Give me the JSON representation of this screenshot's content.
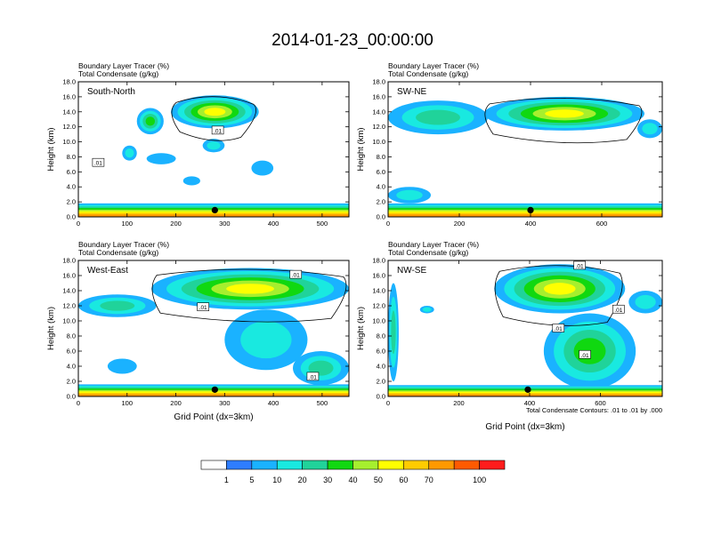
{
  "figure": {
    "title": "2014-01-23_00:00:00",
    "footnote": "Total Condensate Contours: .01 to .01 by .000"
  },
  "colorbar": {
    "labels": [
      "1",
      "5",
      "10",
      "20",
      "30",
      "40",
      "50",
      "60",
      "70",
      "100"
    ],
    "colors": [
      "#ffffff",
      "#2e7dff",
      "#1ab2ff",
      "#19e9e0",
      "#20d39a",
      "#10d810",
      "#a6ef2e",
      "#ffff00",
      "#ffcc00",
      "#ff9900",
      "#ff5a00",
      "#ff1c1c"
    ]
  },
  "chart_data": [
    {
      "type": "heatmap",
      "panel_label": "South-North",
      "header_line1": "Boundary Layer Tracer    (%)",
      "header_line2": "Total Condensate    (g/kg)",
      "ylabel": "Height (km)",
      "xlabel": "",
      "xlim": [
        0,
        555
      ],
      "ylim": [
        0,
        18
      ],
      "xticks": [
        0,
        100,
        200,
        300,
        400,
        500
      ],
      "xtick_labels": [
        "0",
        "100",
        "200",
        "300",
        "400",
        "500"
      ],
      "yticks": [
        0,
        2,
        4,
        6,
        8,
        10,
        12,
        14,
        16,
        18
      ],
      "ytick_labels": [
        "0.0",
        "2.0",
        "4.0",
        "6.0",
        "8.0",
        "10.0",
        "12.0",
        "14.0",
        "16.0",
        "18.0"
      ],
      "marker_x": 280,
      "contour_labels": [
        ".01",
        ".01"
      ],
      "contour_label_pos": [
        [
          40,
          7.2
        ],
        [
          285,
          11.5
        ]
      ],
      "tracer_regions": [
        {
          "x": [
            190,
            370
          ],
          "y": [
            11.8,
            16.2
          ],
          "level": 50
        },
        {
          "x": [
            120,
            175
          ],
          "y": [
            11.0,
            14.5
          ],
          "level": 30
        },
        {
          "x": [
            90,
            120
          ],
          "y": [
            7.5,
            9.5
          ],
          "level": 10
        },
        {
          "x": [
            140,
            200
          ],
          "y": [
            7.0,
            8.5
          ],
          "level": 5
        },
        {
          "x": [
            255,
            300
          ],
          "y": [
            8.6,
            10.4
          ],
          "level": 10
        },
        {
          "x": [
            215,
            250
          ],
          "y": [
            4.2,
            5.4
          ],
          "level": 5
        },
        {
          "x": [
            355,
            400
          ],
          "y": [
            5.5,
            7.5
          ],
          "level": 5
        },
        {
          "x": [
            0,
            555
          ],
          "y": [
            0,
            1.8
          ],
          "level": 70
        }
      ]
    },
    {
      "type": "heatmap",
      "panel_label": "SW-NE",
      "header_line1": "Boundary Layer Tracer    (%)",
      "header_line2": "Total Condensate    (g/kg)",
      "ylabel": "Height (km)",
      "xlabel": "",
      "xlim": [
        0,
        770
      ],
      "ylim": [
        0,
        18
      ],
      "xticks": [
        0,
        200,
        400,
        600
      ],
      "xtick_labels": [
        "0",
        "200",
        "400",
        "600"
      ],
      "yticks": [
        0,
        2,
        4,
        6,
        8,
        10,
        12,
        14,
        16,
        18
      ],
      "ytick_labels": [
        "0.0",
        "2.0",
        "4.0",
        "6.0",
        "8.0",
        "10.0",
        "12.0",
        "14.0",
        "16.0",
        "18.0"
      ],
      "marker_x": 400,
      "contour_labels": [],
      "contour_label_pos": [],
      "tracer_regions": [
        {
          "x": [
            270,
            720
          ],
          "y": [
            11.5,
            16.0
          ],
          "level": 50
        },
        {
          "x": [
            0,
            280
          ],
          "y": [
            11.0,
            15.5
          ],
          "level": 20
        },
        {
          "x": [
            700,
            770
          ],
          "y": [
            10.5,
            13.0
          ],
          "level": 10
        },
        {
          "x": [
            0,
            120
          ],
          "y": [
            1.8,
            4.0
          ],
          "level": 10
        },
        {
          "x": [
            0,
            770
          ],
          "y": [
            0,
            1.8
          ],
          "level": 70
        }
      ]
    },
    {
      "type": "heatmap",
      "panel_label": "West-East",
      "header_line1": "Boundary Layer Tracer    (%)",
      "header_line2": "Total Condensate    (g/kg)",
      "ylabel": "Height (km)",
      "xlabel": "Grid Point (dx=3km)",
      "xlim": [
        0,
        555
      ],
      "ylim": [
        0,
        18
      ],
      "xticks": [
        0,
        100,
        200,
        300,
        400,
        500
      ],
      "xtick_labels": [
        "0",
        "100",
        "200",
        "300",
        "400",
        "500"
      ],
      "yticks": [
        0,
        2,
        4,
        6,
        8,
        10,
        12,
        14,
        16,
        18
      ],
      "ytick_labels": [
        "0.0",
        "2.0",
        "4.0",
        "6.0",
        "8.0",
        "10.0",
        "12.0",
        "14.0",
        "16.0",
        "18.0"
      ],
      "marker_x": 280,
      "contour_labels": [
        ".01",
        ".01",
        ".01"
      ],
      "contour_label_pos": [
        [
          255,
          11.8
        ],
        [
          445,
          16.1
        ],
        [
          480,
          2.6
        ]
      ],
      "tracer_regions": [
        {
          "x": [
            150,
            555
          ],
          "y": [
            11.5,
            17.0
          ],
          "level": 50
        },
        {
          "x": [
            0,
            160
          ],
          "y": [
            10.5,
            13.5
          ],
          "level": 20
        },
        {
          "x": [
            300,
            470
          ],
          "y": [
            3.5,
            11.5
          ],
          "level": 10
        },
        {
          "x": [
            440,
            555
          ],
          "y": [
            1.5,
            6.0
          ],
          "level": 20
        },
        {
          "x": [
            60,
            120
          ],
          "y": [
            3.0,
            5.0
          ],
          "level": 5
        },
        {
          "x": [
            0,
            555
          ],
          "y": [
            0,
            1.6
          ],
          "level": 70
        }
      ]
    },
    {
      "type": "heatmap",
      "panel_label": "NW-SE",
      "header_line1": "Boundary Layer Tracer    (%)",
      "header_line2": "Total Condensate    (g/kg)",
      "ylabel": "Height (km)",
      "xlabel": "Grid Point (dx=3km)",
      "xlim": [
        0,
        775
      ],
      "ylim": [
        0,
        18
      ],
      "xticks": [
        0,
        200,
        400,
        600
      ],
      "xtick_labels": [
        "0",
        "200",
        "400",
        "600"
      ],
      "yticks": [
        0,
        2,
        4,
        6,
        8,
        10,
        12,
        14,
        16,
        18
      ],
      "ytick_labels": [
        "0.0",
        "2.0",
        "4.0",
        "6.0",
        "8.0",
        "10.0",
        "12.0",
        "14.0",
        "16.0",
        "18.0"
      ],
      "marker_x": 395,
      "contour_labels": [
        ".01",
        ".01",
        ".01",
        ".01"
      ],
      "contour_label_pos": [
        [
          540,
          17.3
        ],
        [
          480,
          9.0
        ],
        [
          555,
          5.5
        ],
        [
          650,
          11.5
        ]
      ],
      "tracer_regions": [
        {
          "x": [
            300,
            670
          ],
          "y": [
            11.0,
            17.5
          ],
          "level": 50
        },
        {
          "x": [
            440,
            700
          ],
          "y": [
            1.0,
            11.0
          ],
          "level": 30
        },
        {
          "x": [
            0,
            30
          ],
          "y": [
            2.0,
            15.0
          ],
          "level": 20
        },
        {
          "x": [
            680,
            775
          ],
          "y": [
            11.0,
            14.0
          ],
          "level": 10
        },
        {
          "x": [
            90,
            130
          ],
          "y": [
            11.0,
            12.0
          ],
          "level": 10
        },
        {
          "x": [
            0,
            775
          ],
          "y": [
            0,
            1.5
          ],
          "level": 70
        }
      ]
    }
  ]
}
